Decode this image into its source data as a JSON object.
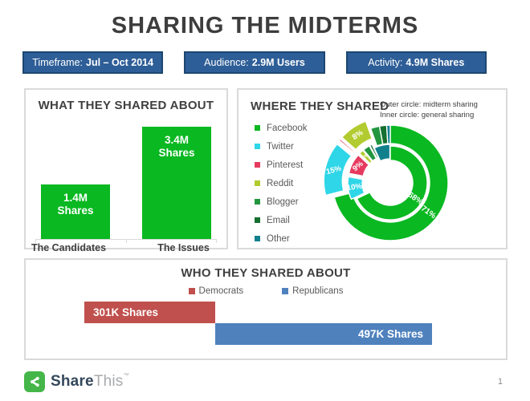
{
  "page": {
    "title": "SHARING THE MIDTERMS",
    "page_number": "1"
  },
  "theme": {
    "badge_bg": "#2e5e97",
    "badge_border": "#1c4670",
    "title_color": "#3d3d3d",
    "heading_color": "#404040",
    "text_gray": "#595959",
    "panel_border": "#dadada",
    "axis_line": "#d9d9d9"
  },
  "badges": [
    {
      "label": "Timeframe:",
      "value": "Jul – Oct 2014"
    },
    {
      "label": "Audience:",
      "value": "2.9M Users"
    },
    {
      "label": "Activity:",
      "value": "4.9M Shares"
    }
  ],
  "footer": {
    "brand_share": "Share",
    "brand_this": "This",
    "trademark": "™",
    "logo_color": "#45b649"
  },
  "chart_data": [
    {
      "type": "bar",
      "title": "WHAT THEY SHARED ABOUT",
      "categories": [
        "The Candidates",
        "The Issues"
      ],
      "values": [
        1.4,
        3.4
      ],
      "unit": "M Shares",
      "bar_labels": [
        {
          "value": "1.4M",
          "unit": "Shares"
        },
        {
          "value": "3.4M",
          "unit": "Shares"
        }
      ],
      "bar_color": "#0ab821",
      "ylim": [
        0,
        4
      ],
      "grid": false
    },
    {
      "type": "donut",
      "title": "WHERE THEY SHARED",
      "annotation": [
        "Outer circle: midterm sharing",
        "Inner circle: general sharing"
      ],
      "legend_position": "left",
      "legend": [
        {
          "name": "Facebook",
          "color": "#0ab821"
        },
        {
          "name": "Twitter",
          "color": "#2fd6e7"
        },
        {
          "name": "Pinterest",
          "color": "#e73a5f"
        },
        {
          "name": "Reddit",
          "color": "#b2cb30"
        },
        {
          "name": "Blogger",
          "color": "#22963f"
        },
        {
          "name": "Email",
          "color": "#156f2e"
        },
        {
          "name": "Other",
          "color": "#11808d"
        }
      ],
      "rings": [
        {
          "id": "outer",
          "name": "midterm sharing (outer circle)",
          "r_inner": 49,
          "r_outer": 72,
          "segments": [
            {
              "platform": "Facebook",
              "value": 71,
              "label": "71%",
              "explode": 0,
              "label_r": 60,
              "label_rot": 35,
              "label_size": 10
            },
            {
              "platform": "Twitter",
              "value": 15,
              "label": "15%",
              "explode": 11,
              "label_r": 61,
              "label_rot": -15,
              "label_size": 9.5
            },
            {
              "platform": "Pinterest",
              "value": 0.5,
              "explode": 11
            },
            {
              "platform": "Reddit",
              "value": 8,
              "label": "8%",
              "explode": 11,
              "label_r": 61,
              "label_rot": -35,
              "label_size": 9.5
            },
            {
              "platform": "Blogger",
              "value": 2.5,
              "explode": 0
            },
            {
              "platform": "Email",
              "value": 2,
              "explode": 0
            },
            {
              "platform": "Other",
              "value": 1,
              "explode": 0
            }
          ]
        },
        {
          "id": "inner",
          "name": "general sharing (inner circle)",
          "r_inner": 28,
          "r_outer": 46,
          "segments": [
            {
              "platform": "Facebook",
              "value": 68,
              "label": "68%",
              "explode": 0,
              "label_r": 37,
              "label_rot": 35,
              "label_size": 10
            },
            {
              "platform": "Twitter",
              "value": 10,
              "label": "10%",
              "explode": 7,
              "label_r": 38,
              "label_rot": -8,
              "label_size": 9.5
            },
            {
              "platform": "Pinterest",
              "value": 9,
              "label": "9%",
              "explode": 7,
              "label_r": 38,
              "label_rot": -40,
              "label_size": 9.5
            },
            {
              "platform": "Reddit",
              "value": 2,
              "label": "2%",
              "explode": 7,
              "label_r": 38,
              "label_rot": -60,
              "label_size": 6
            },
            {
              "platform": "Blogger",
              "value": 3,
              "explode": 7
            },
            {
              "platform": "Email",
              "value": 1,
              "explode": 7
            },
            {
              "platform": "Other",
              "value": 7,
              "explode": 2
            }
          ]
        }
      ]
    },
    {
      "type": "bar-horizontal",
      "title": "WHO THEY SHARED ABOUT",
      "layout": "waterfall",
      "series": [
        {
          "name": "Democrats",
          "color": "#c0504d",
          "value_k": 301,
          "label": "301K Shares"
        },
        {
          "name": "Republicans",
          "color": "#4f81bd",
          "value_k": 497,
          "label": "497K Shares"
        }
      ]
    }
  ]
}
